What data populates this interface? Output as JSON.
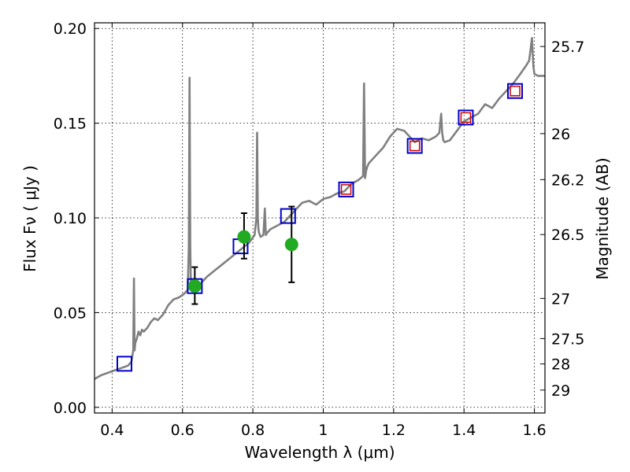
{
  "chart_data": {
    "type": "scatter",
    "xlabel": "Wavelength  λ (μm)",
    "ylabel_left": "Flux  Fν  ( μJy )",
    "ylabel_right": "Magnitude (AB)",
    "xlim": [
      0.35,
      1.63
    ],
    "ylim": [
      -0.003,
      0.203
    ],
    "x_ticks": [
      0.4,
      0.6,
      0.8,
      1.0,
      1.2,
      1.4,
      1.6
    ],
    "x_tick_labels": [
      "0.4",
      "0.6",
      "0.8",
      "1",
      "1.2",
      "1.4",
      "1.6"
    ],
    "y_ticks": [
      0.0,
      0.05,
      0.1,
      0.15,
      0.2
    ],
    "y_tick_labels": [
      "0.00",
      "0.05",
      "0.10",
      "0.15",
      "0.20"
    ],
    "right_ticks": [
      {
        "label": "25.7",
        "flux": 0.1905
      },
      {
        "label": "26",
        "flux": 0.1445
      },
      {
        "label": "26.2",
        "flux": 0.1202
      },
      {
        "label": "26.5",
        "flux": 0.0912
      },
      {
        "label": "27",
        "flux": 0.0575
      },
      {
        "label": "27.5",
        "flux": 0.0363
      },
      {
        "label": "28",
        "flux": 0.0229
      },
      {
        "label": "29",
        "flux": 0.0091
      }
    ],
    "grid": true,
    "series": [
      {
        "kind": "spectrum",
        "color": "#808080",
        "x": [
          0.35,
          0.37,
          0.4,
          0.43,
          0.445,
          0.455,
          0.46,
          0.462,
          0.464,
          0.466,
          0.47,
          0.475,
          0.48,
          0.485,
          0.49,
          0.5,
          0.51,
          0.52,
          0.53,
          0.545,
          0.56,
          0.575,
          0.59,
          0.605,
          0.615,
          0.618,
          0.62,
          0.622,
          0.624,
          0.627,
          0.63,
          0.64,
          0.655,
          0.67,
          0.69,
          0.71,
          0.73,
          0.75,
          0.77,
          0.79,
          0.805,
          0.81,
          0.812,
          0.814,
          0.816,
          0.818,
          0.822,
          0.83,
          0.834,
          0.837,
          0.84,
          0.85,
          0.87,
          0.89,
          0.9,
          0.92,
          0.94,
          0.96,
          0.98,
          1.0,
          1.02,
          1.04,
          1.06,
          1.08,
          1.1,
          1.113,
          1.116,
          1.119,
          1.122,
          1.125,
          1.13,
          1.15,
          1.17,
          1.19,
          1.21,
          1.23,
          1.245,
          1.26,
          1.28,
          1.3,
          1.32,
          1.33,
          1.335,
          1.338,
          1.341,
          1.345,
          1.36,
          1.38,
          1.4,
          1.42,
          1.44,
          1.46,
          1.48,
          1.5,
          1.52,
          1.54,
          1.56,
          1.575,
          1.585,
          1.59,
          1.593,
          1.597,
          1.6,
          1.61,
          1.63
        ],
        "y": [
          0.015,
          0.017,
          0.019,
          0.021,
          0.022,
          0.024,
          0.03,
          0.068,
          0.03,
          0.034,
          0.036,
          0.04,
          0.038,
          0.041,
          0.04,
          0.042,
          0.045,
          0.047,
          0.046,
          0.049,
          0.054,
          0.057,
          0.058,
          0.06,
          0.062,
          0.085,
          0.174,
          0.085,
          0.063,
          0.064,
          0.062,
          0.063,
          0.066,
          0.069,
          0.072,
          0.075,
          0.078,
          0.081,
          0.084,
          0.087,
          0.091,
          0.1,
          0.145,
          0.1,
          0.094,
          0.092,
          0.09,
          0.091,
          0.105,
          0.091,
          0.092,
          0.094,
          0.096,
          0.098,
          0.1,
          0.104,
          0.108,
          0.109,
          0.107,
          0.11,
          0.111,
          0.113,
          0.114,
          0.118,
          0.12,
          0.122,
          0.171,
          0.121,
          0.125,
          0.127,
          0.129,
          0.133,
          0.137,
          0.143,
          0.147,
          0.146,
          0.143,
          0.14,
          0.142,
          0.141,
          0.143,
          0.145,
          0.155,
          0.145,
          0.141,
          0.14,
          0.141,
          0.146,
          0.151,
          0.153,
          0.155,
          0.16,
          0.158,
          0.163,
          0.167,
          0.171,
          0.176,
          0.18,
          0.183,
          0.19,
          0.195,
          0.18,
          0.176,
          0.175,
          0.175
        ]
      },
      {
        "kind": "blue_squares",
        "color": "#0000cc",
        "x": [
          0.435,
          0.635,
          0.765,
          0.9,
          1.065,
          1.26,
          1.405,
          1.545
        ],
        "y": [
          0.023,
          0.064,
          0.085,
          0.101,
          0.115,
          0.138,
          0.153,
          0.167
        ]
      },
      {
        "kind": "red_squares",
        "color": "#cc0000",
        "x": [
          1.065,
          1.26,
          1.405,
          1.545
        ],
        "y": [
          0.115,
          0.138,
          0.153,
          0.167
        ]
      },
      {
        "kind": "green_circles_with_errorbars",
        "color": "#22aa22",
        "x": [
          0.635,
          0.775,
          0.91
        ],
        "y": [
          0.064,
          0.09,
          0.086
        ],
        "err_low": [
          0.0545,
          0.0785,
          0.066
        ],
        "err_high": [
          0.074,
          0.1025,
          0.106
        ]
      }
    ]
  }
}
